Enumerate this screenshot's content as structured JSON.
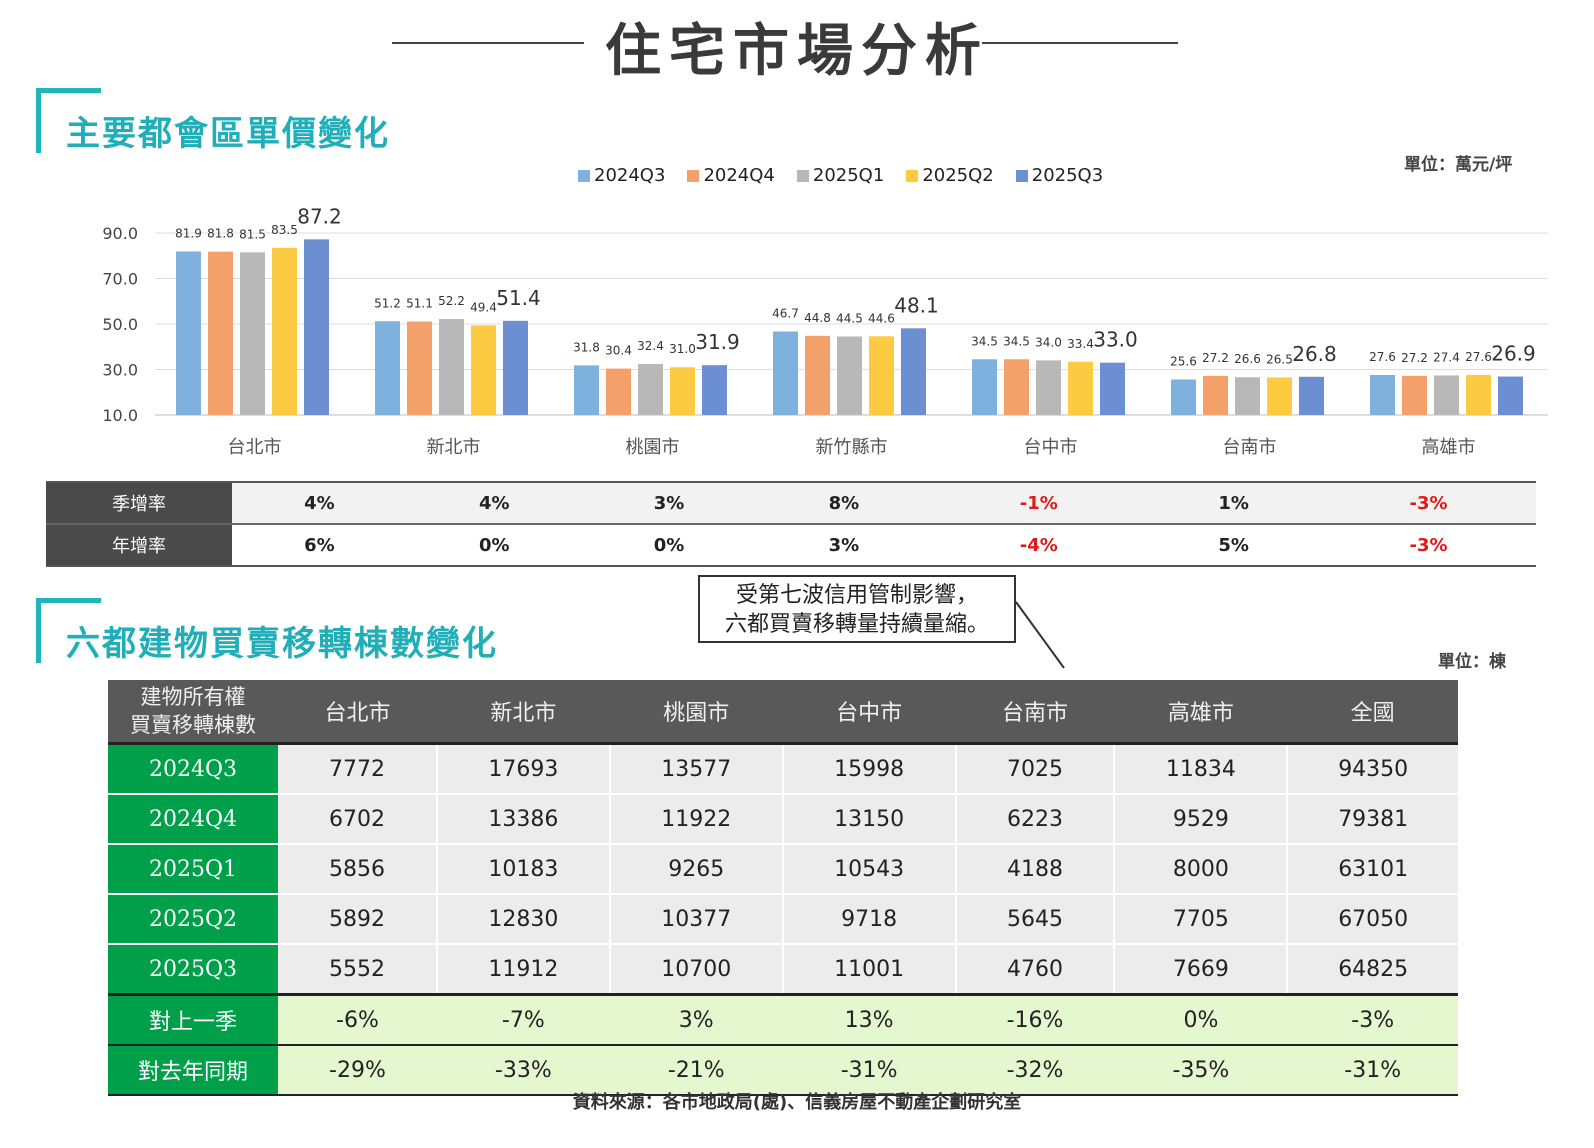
{
  "page_title": "住宅市場分析",
  "section1": {
    "title": "主要都會區單價變化",
    "unit": "單位：萬元/坪"
  },
  "section2": {
    "title": "六都建物買賣移轉棟數變化",
    "unit": "單位：棟"
  },
  "colors": {
    "accent": "#20b4bd",
    "dark": "#4a4a4a",
    "green": "#00a04a",
    "light_green": "#e4f7cf",
    "negative": "#e01818"
  },
  "chart_data": {
    "type": "bar",
    "title": "主要都會區單價變化",
    "ylabel": "萬元/坪",
    "ylim": [
      10,
      90
    ],
    "yticks": [
      "90.0",
      "70.0",
      "50.0",
      "30.0",
      "10.0"
    ],
    "categories": [
      "台北市",
      "新北市",
      "桃園市",
      "新竹縣市",
      "台中市",
      "台南市",
      "高雄市"
    ],
    "series": [
      {
        "name": "2024Q3",
        "color": "#7fb1df",
        "values": [
          81.9,
          51.2,
          31.8,
          46.7,
          34.5,
          25.6,
          27.6
        ],
        "labels": [
          "81.9",
          "51.2",
          "31.8",
          "46.7",
          "34.5",
          "25.6",
          "27.6"
        ]
      },
      {
        "name": "2024Q4",
        "color": "#f4a06a",
        "values": [
          81.8,
          51.1,
          30.4,
          44.8,
          34.5,
          27.2,
          27.2
        ],
        "labels": [
          "81.8",
          "51.1",
          "30.4",
          "44.8",
          "34.5",
          "27.2",
          "27.2"
        ]
      },
      {
        "name": "2025Q1",
        "color": "#b8b8b8",
        "values": [
          81.5,
          52.2,
          32.4,
          44.5,
          34.0,
          26.6,
          27.4
        ],
        "labels": [
          "81.5",
          "52.2",
          "32.4",
          "44.5",
          "34.0",
          "26.6",
          "27.4"
        ]
      },
      {
        "name": "2025Q2",
        "color": "#fdcb42",
        "values": [
          83.5,
          49.4,
          31.0,
          44.6,
          33.4,
          26.5,
          27.6
        ],
        "labels": [
          "83.5",
          "49.4",
          "31.0",
          "44.6",
          "33.4",
          "26.5",
          "27.6"
        ]
      },
      {
        "name": "2025Q3",
        "color": "#6b8fd0",
        "values": [
          87.2,
          51.4,
          31.9,
          48.1,
          33.0,
          26.8,
          26.9
        ],
        "labels": [
          "87.2",
          "51.4",
          "31.9",
          "48.1",
          "33.0",
          "26.8",
          "26.9"
        ]
      }
    ],
    "legend": "top-center"
  },
  "growth": {
    "rows": [
      {
        "label": "季增率",
        "values": [
          "4%",
          "4%",
          "3%",
          "8%",
          "-1%",
          "1%",
          "-3%"
        ]
      },
      {
        "label": "年增率",
        "values": [
          "6%",
          "0%",
          "0%",
          "3%",
          "-4%",
          "5%",
          "-3%"
        ]
      }
    ]
  },
  "callout": {
    "line1": "受第七波信用管制影響，",
    "line2": "六都買賣移轉量持續量縮。"
  },
  "transfer_table": {
    "corner_line1": "建物所有權",
    "corner_line2": "買賣移轉棟數",
    "headers": [
      "台北市",
      "新北市",
      "桃園市",
      "台中市",
      "台南市",
      "高雄市",
      "全國"
    ],
    "rows": [
      {
        "label": "2024Q3",
        "values": [
          "7772",
          "17693",
          "13577",
          "15998",
          "7025",
          "11834",
          "94350"
        ]
      },
      {
        "label": "2024Q4",
        "values": [
          "6702",
          "13386",
          "11922",
          "13150",
          "6223",
          "9529",
          "79381"
        ]
      },
      {
        "label": "2025Q1",
        "values": [
          "5856",
          "10183",
          "9265",
          "10543",
          "4188",
          "8000",
          "63101"
        ]
      },
      {
        "label": "2025Q2",
        "values": [
          "5892",
          "12830",
          "10377",
          "9718",
          "5645",
          "7705",
          "67050"
        ]
      },
      {
        "label": "2025Q3",
        "values": [
          "5552",
          "11912",
          "10700",
          "11001",
          "4760",
          "7669",
          "64825"
        ]
      }
    ],
    "growth_rows": [
      {
        "label": "對上一季",
        "values": [
          "-6%",
          "-7%",
          "3%",
          "13%",
          "-16%",
          "0%",
          "-3%"
        ]
      },
      {
        "label": "對去年同期",
        "values": [
          "-29%",
          "-33%",
          "-21%",
          "-31%",
          "-32%",
          "-35%",
          "-31%"
        ]
      }
    ]
  },
  "source": "資料來源：各市地政局(處)、信義房屋不動產企劃研究室"
}
